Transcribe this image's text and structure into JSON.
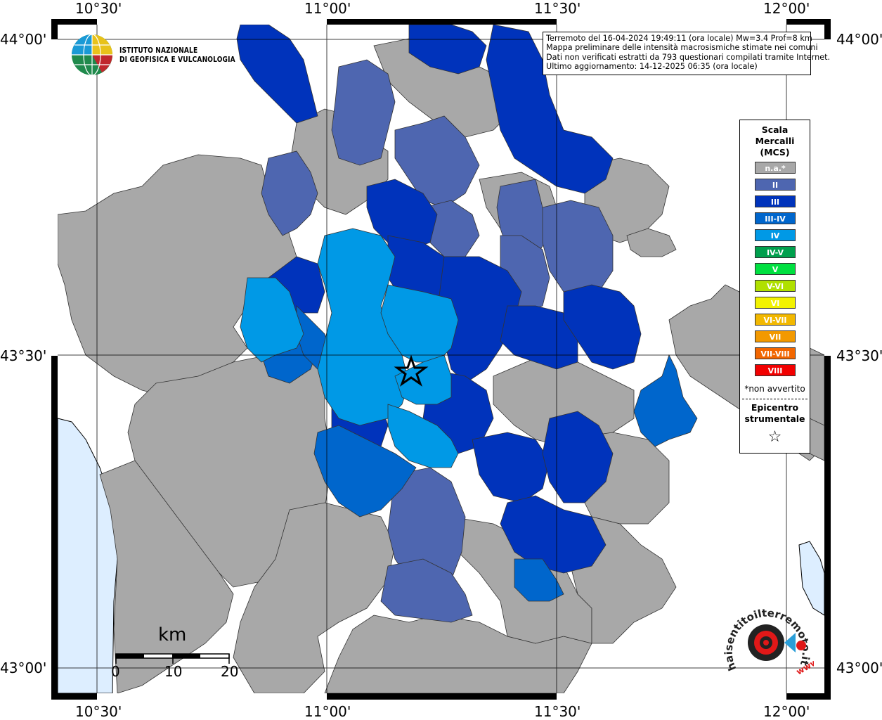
{
  "coordinates": {
    "lon_labels": [
      "10°30'",
      "11°00'",
      "11°30'",
      "12°00'"
    ],
    "lat_labels": [
      "44°00'",
      "43°30'",
      "43°00'"
    ]
  },
  "institute": {
    "line1": "ISTITUTO NAZIONALE",
    "line2": "DI GEOFISICA E VULCANOLOGIA"
  },
  "info": {
    "line1": "Terremoto del 16-04-2024 19:49:11 (ora locale) Mw=3.4 Prof=8 km",
    "line2": "Mappa preliminare delle intensità macrosismiche stimate nei comuni",
    "line3": "Dati non verificati estratti da 793 questionari compilati tramite Internet.",
    "line4": "Ultimo aggiornamento: 14-12-2025 06:35 (ora locale)"
  },
  "legend": {
    "title_line1": "Scala",
    "title_line2": "Mercalli",
    "title_line3": "(MCS)",
    "items": [
      {
        "label": "n.a.*",
        "color": "#a8a8a8"
      },
      {
        "label": "II",
        "color": "#4e66b0"
      },
      {
        "label": "III",
        "color": "#0033bb"
      },
      {
        "label": "III-IV",
        "color": "#0066cc"
      },
      {
        "label": "IV",
        "color": "#0099e6"
      },
      {
        "label": "IV-V",
        "color": "#00a04d"
      },
      {
        "label": "V",
        "color": "#00e040"
      },
      {
        "label": "V-VI",
        "color": "#b0e000"
      },
      {
        "label": "VI",
        "color": "#f2f200"
      },
      {
        "label": "VI-VII",
        "color": "#f2b800"
      },
      {
        "label": "VII",
        "color": "#f29900"
      },
      {
        "label": "VII-VIII",
        "color": "#f26600"
      },
      {
        "label": "VIII",
        "color": "#f20000"
      }
    ],
    "note": "*non avvertito",
    "epicenter_line1": "Epicentro",
    "epicenter_line2": "strumentale",
    "epicenter_symbol": "☆"
  },
  "scale": {
    "unit": "km",
    "ticks": [
      "0",
      "10",
      "20"
    ]
  },
  "watermark": {
    "text": "haisentitoilterremoto.it",
    "url_text": "www."
  },
  "colors": {
    "na": "#a8a8a8",
    "ii": "#4e66b0",
    "iii": "#0033bb",
    "iii_iv": "#0066cc",
    "iv": "#0099e6",
    "sea": "#ddeeff"
  }
}
